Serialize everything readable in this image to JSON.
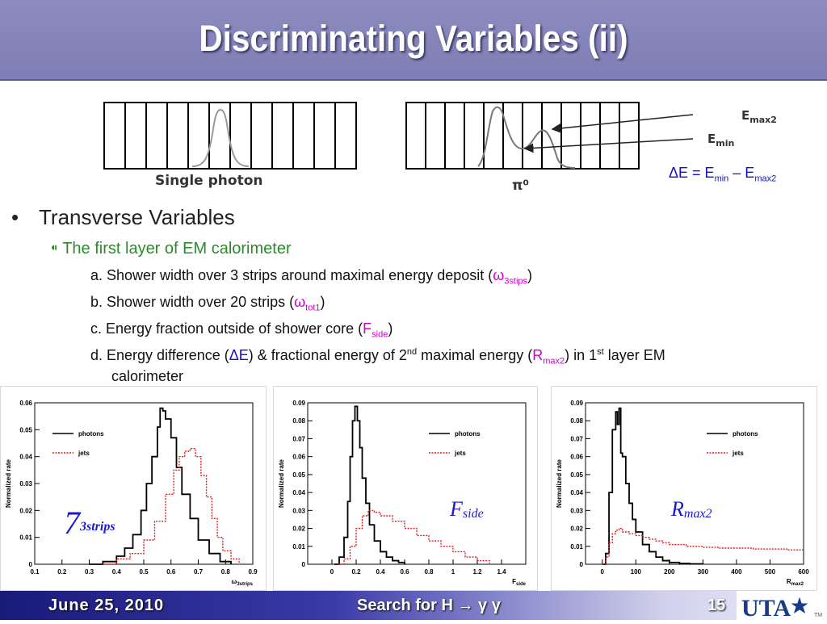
{
  "title": "Discriminating Variables (ii)",
  "diagram": {
    "single_caption": "Single photon",
    "pi0_caption": "π⁰",
    "emax2_label_main": "E",
    "emax2_label_sub": "max2",
    "emin_label_main": "E",
    "emin_label_sub": "min",
    "delta_e_formula": {
      "lhs": "ΔE = E",
      "sub1": "min",
      "mid": " – E",
      "sub2": "max2"
    }
  },
  "bullets": {
    "level1": "Transverse Variables",
    "level1_marker": "•",
    "level2_marker": "⁌",
    "level2": "The first layer of EM calorimeter",
    "items": [
      {
        "prefix": "a. Shower width over 3 strips around maximal energy deposit (",
        "sym": "ω",
        "sub": "3stips",
        "suffix": ")"
      },
      {
        "prefix": "b. Shower width over 20 strips (",
        "sym": "ω",
        "sub": "tot1",
        "suffix": ")"
      },
      {
        "prefix": "c. Energy fraction outside of shower core (",
        "sym": "F",
        "sub": "side",
        "suffix": ")"
      }
    ],
    "item_d": {
      "p1": "d. Energy difference (",
      "sym1": "ΔE",
      "p2": ") & fractional energy of 2",
      "sup1": "nd",
      "p3": " maximal energy (",
      "sym2": "R",
      "sub2": "max2",
      "p4": ") in 1",
      "sup2": "st",
      "p5": " layer EM",
      "line2": "calorimeter"
    }
  },
  "chart_data": [
    {
      "type": "line",
      "ylabel": "Normalized rate",
      "xlabel": "ω3strips",
      "xlabel_main": "ω",
      "xlabel_sub": "3strips",
      "xlim": [
        0.1,
        0.9
      ],
      "ylim": [
        0,
        0.06
      ],
      "xticks": [
        "0.1",
        "0.2",
        "0.3",
        "0.4",
        "0.5",
        "0.6",
        "0.7",
        "0.8",
        "0.9"
      ],
      "yticks": [
        "0",
        "0.01",
        "0.02",
        "0.03",
        "0.04",
        "0.05",
        "0.06"
      ],
      "legend": [
        "photons",
        "jets"
      ],
      "legend_placement": "top-left",
      "overlay_main": "7",
      "overlay_sub": "3strips",
      "series": [
        {
          "name": "photons",
          "x": [
            0.3,
            0.35,
            0.4,
            0.43,
            0.46,
            0.49,
            0.51,
            0.53,
            0.55,
            0.56,
            0.57,
            0.58,
            0.6,
            0.62,
            0.64,
            0.67,
            0.7,
            0.74,
            0.78,
            0.82
          ],
          "values": [
            0,
            0.001,
            0.003,
            0.006,
            0.011,
            0.02,
            0.03,
            0.04,
            0.051,
            0.058,
            0.057,
            0.054,
            0.047,
            0.036,
            0.026,
            0.017,
            0.009,
            0.004,
            0.001,
            0
          ]
        },
        {
          "name": "jets",
          "x": [
            0.35,
            0.4,
            0.45,
            0.5,
            0.54,
            0.58,
            0.61,
            0.63,
            0.65,
            0.67,
            0.69,
            0.71,
            0.73,
            0.75,
            0.77,
            0.79,
            0.82,
            0.85
          ],
          "values": [
            0,
            0.002,
            0.004,
            0.009,
            0.016,
            0.026,
            0.035,
            0.04,
            0.042,
            0.043,
            0.04,
            0.033,
            0.025,
            0.017,
            0.01,
            0.005,
            0.002,
            0
          ]
        }
      ]
    },
    {
      "type": "line",
      "ylabel": "Normalized rate",
      "xlabel": "Fside",
      "xlabel_main": "F",
      "xlabel_sub": "side",
      "xlim": [
        -0.2,
        1.6
      ],
      "ylim": [
        0,
        0.09
      ],
      "xticks": [
        "0",
        "0.2",
        "0.4",
        "0.6",
        "0.8",
        "1",
        "1.2",
        "1.4"
      ],
      "xtick_values": [
        0,
        0.2,
        0.4,
        0.6,
        0.8,
        1.0,
        1.2,
        1.4
      ],
      "yticks": [
        "0",
        "0.01",
        "0.02",
        "0.03",
        "0.04",
        "0.05",
        "0.06",
        "0.07",
        "0.08",
        "0.09"
      ],
      "legend": [
        "photons",
        "jets"
      ],
      "legend_placement": "top-right",
      "overlay_main": "F",
      "overlay_sub": "side",
      "series": [
        {
          "name": "photons",
          "x": [
            0.02,
            0.06,
            0.1,
            0.13,
            0.15,
            0.17,
            0.19,
            0.21,
            0.23,
            0.25,
            0.28,
            0.31,
            0.35,
            0.4,
            0.45,
            0.5,
            0.55,
            0.6
          ],
          "values": [
            0,
            0.004,
            0.015,
            0.035,
            0.06,
            0.08,
            0.088,
            0.08,
            0.065,
            0.048,
            0.034,
            0.022,
            0.013,
            0.007,
            0.004,
            0.002,
            0.001,
            0
          ]
        },
        {
          "name": "jets",
          "x": [
            0.05,
            0.1,
            0.15,
            0.2,
            0.25,
            0.3,
            0.35,
            0.4,
            0.5,
            0.6,
            0.7,
            0.8,
            0.9,
            1.0,
            1.1,
            1.2,
            1.3
          ],
          "values": [
            0,
            0.003,
            0.01,
            0.02,
            0.027,
            0.03,
            0.029,
            0.027,
            0.024,
            0.02,
            0.016,
            0.013,
            0.01,
            0.007,
            0.004,
            0.002,
            0.0005
          ]
        }
      ]
    },
    {
      "type": "line",
      "ylabel": "Normalized rate",
      "xlabel": "Rmax2",
      "xlabel_main": "R",
      "xlabel_sub": "max2",
      "xlim": [
        -50,
        600
      ],
      "ylim": [
        0,
        0.09
      ],
      "xticks": [
        "0",
        "100",
        "200",
        "300",
        "400",
        "500",
        "600"
      ],
      "xtick_values": [
        0,
        100,
        200,
        300,
        400,
        500,
        600
      ],
      "yticks": [
        "0",
        "0.01",
        "0.02",
        "0.03",
        "0.04",
        "0.05",
        "0.06",
        "0.07",
        "0.08",
        "0.09"
      ],
      "legend": [
        "photons",
        "jets"
      ],
      "legend_placement": "top-right",
      "overlay_main": "R",
      "overlay_sub": "max2",
      "series": [
        {
          "name": "photons",
          "x": [
            0,
            10,
            20,
            30,
            40,
            45,
            50,
            55,
            60,
            70,
            80,
            90,
            100,
            120,
            140,
            160,
            180,
            200,
            230,
            260,
            300
          ],
          "values": [
            0,
            0.006,
            0.04,
            0.075,
            0.085,
            0.078,
            0.087,
            0.062,
            0.06,
            0.045,
            0.034,
            0.025,
            0.018,
            0.011,
            0.007,
            0.004,
            0.002,
            0.001,
            0.0005,
            0.0002,
            0
          ]
        },
        {
          "name": "jets",
          "x": [
            0,
            10,
            20,
            30,
            40,
            50,
            60,
            80,
            100,
            120,
            140,
            160,
            180,
            200,
            250,
            300,
            350,
            400,
            450,
            500,
            550,
            600
          ],
          "values": [
            0,
            0.004,
            0.012,
            0.017,
            0.019,
            0.02,
            0.018,
            0.017,
            0.016,
            0.015,
            0.014,
            0.013,
            0.012,
            0.011,
            0.01,
            0.0095,
            0.009,
            0.009,
            0.0085,
            0.0085,
            0.008,
            0.008
          ]
        }
      ]
    }
  ],
  "footer": {
    "date": "June 25, 2010",
    "center": "Search for H → γ γ",
    "page": "15",
    "logo_text": "UTA",
    "tm": "TM"
  },
  "colors": {
    "title_bar": "#8080b8",
    "photons": "#000000",
    "jets": "#e02020",
    "bullet_green": "#2a8b2a",
    "symbol_magenta": "#cc00cc",
    "formula_blue": "#1010cc",
    "footer_dark": "#1a1a7a"
  }
}
